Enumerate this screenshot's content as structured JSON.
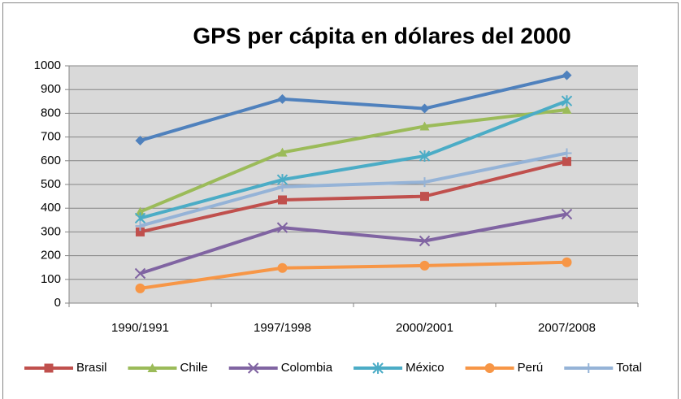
{
  "chart_data": {
    "type": "line",
    "title": "GPS per cápita en dólares del 2000",
    "categories": [
      "1990/1991",
      "1997/1998",
      "2000/2001",
      "2007/2008"
    ],
    "series": [
      {
        "color": "#4F81BD",
        "marker": "diamond",
        "values": [
          685,
          860,
          820,
          960
        ]
      },
      {
        "name": "Brasil",
        "color": "#C0504D",
        "marker": "square",
        "values": [
          300,
          435,
          450,
          597
        ]
      },
      {
        "name": "Chile",
        "color": "#9BBB59",
        "marker": "triangle",
        "values": [
          385,
          635,
          745,
          815
        ]
      },
      {
        "name": "Colombia",
        "color": "#8064A2",
        "marker": "x",
        "values": [
          125,
          318,
          262,
          375
        ]
      },
      {
        "name": "México",
        "color": "#4BACC6",
        "marker": "star",
        "values": [
          358,
          520,
          620,
          852
        ]
      },
      {
        "name": "Perú",
        "color": "#F79646",
        "marker": "circle",
        "values": [
          62,
          148,
          158,
          172
        ]
      },
      {
        "name": "Total",
        "color": "#95B3D7",
        "marker": "plus",
        "values": [
          325,
          490,
          510,
          632
        ]
      }
    ],
    "ylim": [
      0,
      1000
    ],
    "yticks": [
      0,
      100,
      200,
      300,
      400,
      500,
      600,
      700,
      800,
      900,
      1000
    ],
    "grid": true,
    "legend": "bottom"
  }
}
